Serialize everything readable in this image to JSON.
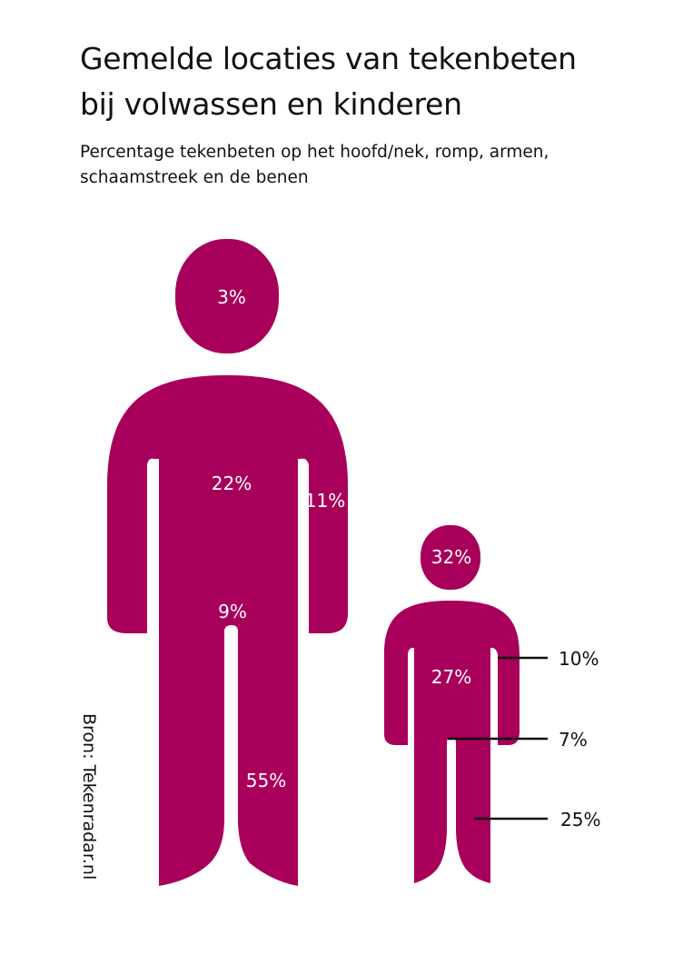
{
  "title_lines": [
    "Gemelde locaties van tekenbeten",
    "bij volwassen en kinderen"
  ],
  "subtitle_lines": [
    "Percentage tekenbeten op het hoofd/nek, romp, armen,",
    "schaamstreek en de benen"
  ],
  "source": "Bron: Tekenradar.nl",
  "colors": {
    "figure": "#a8005a",
    "text": "#111111"
  },
  "adult": {
    "head": "3%",
    "torso": "22%",
    "arms": "11%",
    "groin": "9%",
    "legs": "55%"
  },
  "child": {
    "head": "32%",
    "torso": "27%",
    "arms": "10%",
    "groin": "7%",
    "legs": "25%"
  }
}
